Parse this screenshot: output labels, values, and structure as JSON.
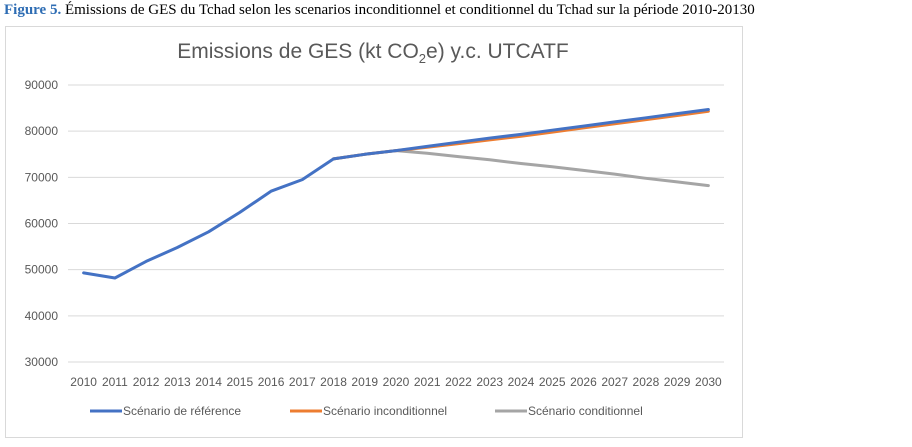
{
  "caption": {
    "figure_label": "Figure 5.",
    "text": " Émissions de GES du Tchad selon les scenarios inconditionnel et conditionnel du Tchad sur la période 2010-20130"
  },
  "chart_data": {
    "type": "line",
    "title_main": "Emissions de GES (kt CO",
    "title_sub": "2",
    "title_rest": "e) y.c. UTCATF",
    "x": [
      2010,
      2011,
      2012,
      2013,
      2014,
      2015,
      2016,
      2017,
      2018,
      2019,
      2020,
      2021,
      2022,
      2023,
      2024,
      2025,
      2026,
      2027,
      2028,
      2029,
      2030
    ],
    "ylim": [
      30000,
      90000
    ],
    "yticks": [
      30000,
      40000,
      50000,
      60000,
      70000,
      80000,
      90000
    ],
    "grid": true,
    "legend_position": "bottom",
    "series": [
      {
        "name": "Scénario de référence",
        "color": "#4472C4",
        "values": [
          49300,
          48200,
          51800,
          54800,
          58200,
          62400,
          67000,
          69500,
          74000,
          75000,
          75800,
          76700,
          77600,
          78500,
          79300,
          80200,
          81100,
          82000,
          82900,
          83800,
          84700
        ]
      },
      {
        "name": "Scénario inconditionnel",
        "color": "#ED7D31",
        "values": [
          null,
          null,
          null,
          null,
          null,
          null,
          null,
          null,
          74000,
          75000,
          75800,
          76500,
          77300,
          78100,
          78900,
          79800,
          80700,
          81600,
          82500,
          83400,
          84300
        ]
      },
      {
        "name": "Scénario conditionnel",
        "color": "#A5A5A5",
        "values": [
          null,
          null,
          null,
          null,
          null,
          null,
          null,
          null,
          74000,
          75000,
          75800,
          75200,
          74500,
          73800,
          73000,
          72300,
          71500,
          70700,
          69800,
          69000,
          68200
        ]
      }
    ]
  }
}
